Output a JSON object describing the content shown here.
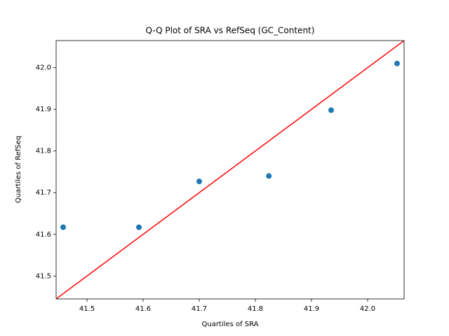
{
  "chart_data": {
    "type": "scatter",
    "title": "Q-Q Plot of SRA vs RefSeq (GC_Content)",
    "x_label": "Quartiles of SRA",
    "y_label": "Quartiles of RefSeq",
    "x": [
      41.4575,
      41.5925,
      41.7,
      41.824,
      41.935,
      42.0525
    ],
    "y": [
      41.617,
      41.617,
      41.727,
      41.74,
      41.898,
      42.01
    ],
    "color": "#1f77b4",
    "reference_line": {
      "color": "#ff0000",
      "x": [
        41.445,
        42.065
      ],
      "y": [
        41.445,
        42.065
      ]
    },
    "xlim": [
      41.445,
      42.065
    ],
    "ylim": [
      41.445,
      42.065
    ],
    "xticks": [
      41.5,
      41.6,
      41.7,
      41.8,
      41.9,
      {
        "value": 42.0,
        "label": "42.0"
      }
    ],
    "yticks": [
      41.5,
      41.6,
      41.7,
      41.8,
      41.9,
      {
        "value": 42.0,
        "label": "42.0"
      }
    ],
    "grid": false
  }
}
